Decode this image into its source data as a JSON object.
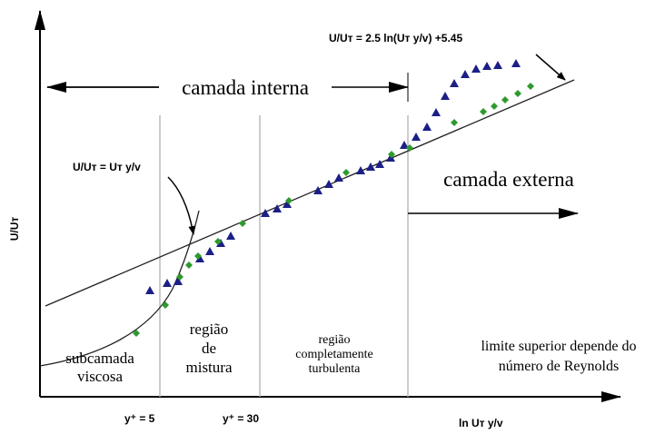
{
  "equations": {
    "log_law": "U/Uт = 2.5 ln(Uт y/v) +5.45",
    "linear_law": "U/Uт = Uт y/v"
  },
  "axes": {
    "y_label": "U/Uт",
    "x_label": "ln Uт y/v",
    "ticks": [
      "y⁺ = 5",
      "y⁺ = 30"
    ]
  },
  "regions": {
    "inner": "camada interna",
    "outer": "camada externa",
    "viscous": [
      "subcamada",
      "viscosa"
    ],
    "buffer": [
      "região",
      "de",
      "mistura"
    ],
    "turbulent": [
      "região",
      "completamente",
      "turbulenta"
    ],
    "limit": [
      "limite superior depende do",
      "número de Reynolds"
    ]
  }
}
